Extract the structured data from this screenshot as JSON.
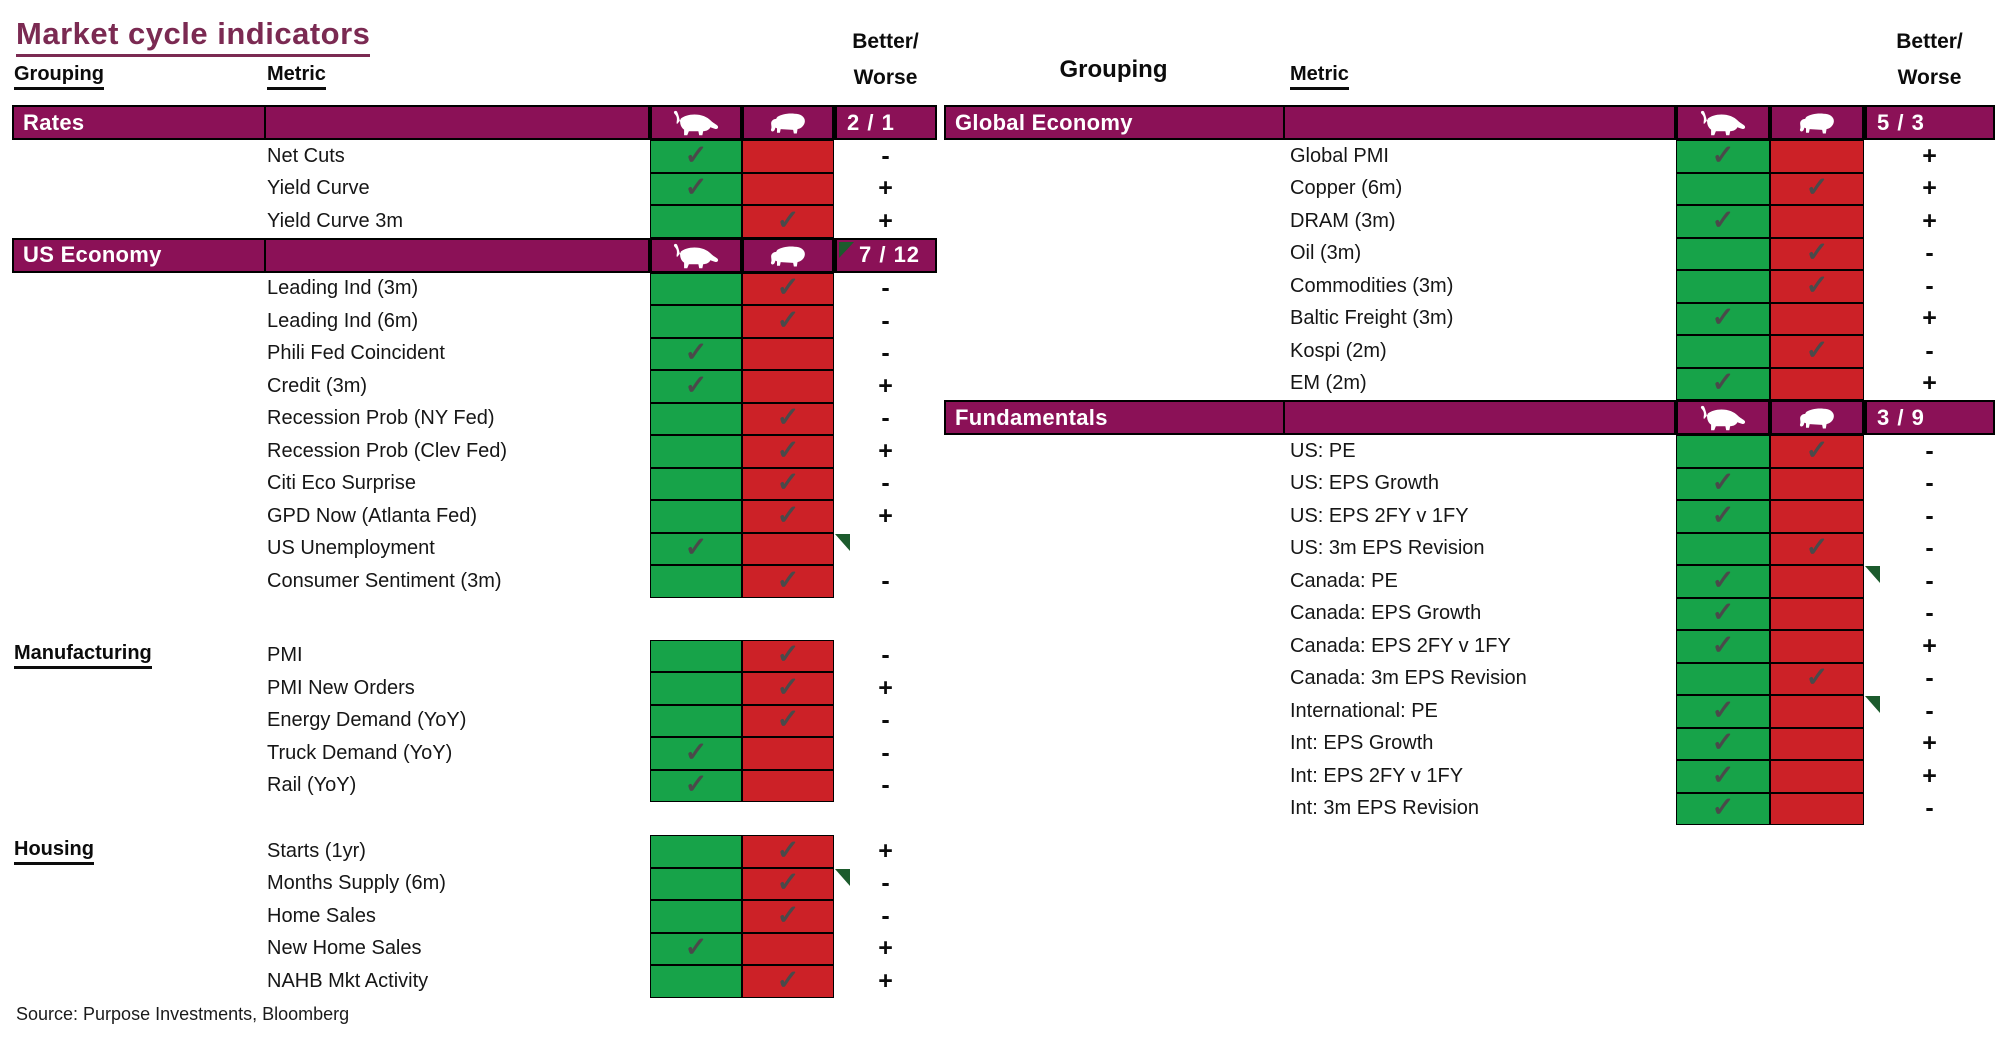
{
  "title": "Market cycle indicators",
  "source_note": "Source: Purpose Investments, Bloomberg",
  "icons": {
    "bull": "bull-silhouette",
    "bear": "bear-silhouette"
  },
  "colors": {
    "band_purple": "#8B1157",
    "title_purple": "#7B2A52",
    "bull_green": "#17A349",
    "bear_red": "#CC2127",
    "check_gray": "#4A4A4A",
    "flag_green": "#1C5B2D"
  },
  "left_table": {
    "headers": {
      "grouping": "Grouping",
      "metric": "Metric",
      "better": "Better/",
      "worse": "Worse"
    },
    "sections": [
      {
        "name": "Rates",
        "type": "band",
        "score": "2 / 1",
        "score_flag": false,
        "rows": [
          {
            "metric": "Net Cuts",
            "signal": "bull",
            "better_worse": "-",
            "flag": false
          },
          {
            "metric": "Yield Curve",
            "signal": "bull",
            "better_worse": "+",
            "flag": false
          },
          {
            "metric": "Yield Curve 3m",
            "signal": "bear",
            "better_worse": "+",
            "flag": false
          }
        ]
      },
      {
        "name": "US Economy",
        "type": "band",
        "score": "7 / 12",
        "score_flag": true,
        "rows": [
          {
            "metric": "Leading Ind (3m)",
            "signal": "bear",
            "better_worse": "-",
            "flag": false
          },
          {
            "metric": "Leading Ind (6m)",
            "signal": "bear",
            "better_worse": "-",
            "flag": false
          },
          {
            "metric": "Phili Fed Coincident",
            "signal": "bull",
            "better_worse": "-",
            "flag": false
          },
          {
            "metric": "Credit (3m)",
            "signal": "bull",
            "better_worse": "+",
            "flag": false
          },
          {
            "metric": "Recession Prob (NY Fed)",
            "signal": "bear",
            "better_worse": "-",
            "flag": false
          },
          {
            "metric": "Recession Prob (Clev Fed)",
            "signal": "bear",
            "better_worse": "+",
            "flag": false
          },
          {
            "metric": "Citi Eco Surprise",
            "signal": "bear",
            "better_worse": "-",
            "flag": false
          },
          {
            "metric": "GPD Now (Atlanta Fed)",
            "signal": "bear",
            "better_worse": "+",
            "flag": false
          },
          {
            "metric": "US Unemployment",
            "signal": "bull",
            "better_worse": "",
            "flag": true
          },
          {
            "metric": "Consumer Sentiment (3m)",
            "signal": "bear",
            "better_worse": "-",
            "flag": false
          }
        ]
      },
      {
        "name": "Manufacturing",
        "type": "label",
        "rows": [
          {
            "metric": "PMI",
            "signal": "bear",
            "better_worse": "-",
            "flag": false
          },
          {
            "metric": "PMI New Orders",
            "signal": "bear",
            "better_worse": "+",
            "flag": false
          },
          {
            "metric": "Energy Demand (YoY)",
            "signal": "bear",
            "better_worse": "-",
            "flag": false
          },
          {
            "metric": "Truck Demand (YoY)",
            "signal": "bull",
            "better_worse": "-",
            "flag": false
          },
          {
            "metric": "Rail (YoY)",
            "signal": "bull",
            "better_worse": "-",
            "flag": false
          }
        ]
      },
      {
        "name": "Housing",
        "type": "label",
        "rows": [
          {
            "metric": "Starts (1yr)",
            "signal": "bear",
            "better_worse": "+",
            "flag": false
          },
          {
            "metric": "Months Supply (6m)",
            "signal": "bear",
            "better_worse": "-",
            "flag": true
          },
          {
            "metric": "Home Sales",
            "signal": "bear",
            "better_worse": "-",
            "flag": false
          },
          {
            "metric": "New Home Sales",
            "signal": "bull",
            "better_worse": "+",
            "flag": false
          },
          {
            "metric": "NAHB Mkt Activity",
            "signal": "bear",
            "better_worse": "+",
            "flag": false
          }
        ]
      }
    ]
  },
  "right_table": {
    "headers": {
      "grouping": "Grouping",
      "metric": "Metric",
      "better": "Better/",
      "worse": "Worse"
    },
    "sections": [
      {
        "name": "Global Economy",
        "type": "band",
        "score": "5 / 3",
        "score_flag": false,
        "rows": [
          {
            "metric": "Global PMI",
            "signal": "bull",
            "better_worse": "+",
            "flag": false
          },
          {
            "metric": "Copper (6m)",
            "signal": "bear",
            "better_worse": "+",
            "flag": false
          },
          {
            "metric": "DRAM (3m)",
            "signal": "bull",
            "better_worse": "+",
            "flag": false
          },
          {
            "metric": "Oil (3m)",
            "signal": "bear",
            "better_worse": "-",
            "flag": false
          },
          {
            "metric": "Commodities (3m)",
            "signal": "bear",
            "better_worse": "-",
            "flag": false
          },
          {
            "metric": "Baltic Freight (3m)",
            "signal": "bull",
            "better_worse": "+",
            "flag": false
          },
          {
            "metric": "Kospi (2m)",
            "signal": "bear",
            "better_worse": "-",
            "flag": false
          },
          {
            "metric": "EM (2m)",
            "signal": "bull",
            "better_worse": "+",
            "flag": false
          }
        ]
      },
      {
        "name": "Fundamentals",
        "type": "band",
        "score": "3 / 9",
        "score_flag": false,
        "rows": [
          {
            "metric": "US: PE",
            "signal": "bear",
            "better_worse": "-",
            "flag": false
          },
          {
            "metric": "US: EPS Growth",
            "signal": "bull",
            "better_worse": "-",
            "flag": false
          },
          {
            "metric": "US: EPS 2FY v 1FY",
            "signal": "bull",
            "better_worse": "-",
            "flag": false
          },
          {
            "metric": "US: 3m EPS Revision",
            "signal": "bear",
            "better_worse": "-",
            "flag": false
          },
          {
            "metric": "Canada: PE",
            "signal": "bull",
            "better_worse": "-",
            "flag": true
          },
          {
            "metric": "Canada: EPS Growth",
            "signal": "bull",
            "better_worse": "-",
            "flag": false
          },
          {
            "metric": "Canada: EPS 2FY v 1FY",
            "signal": "bull",
            "better_worse": "+",
            "flag": false
          },
          {
            "metric": "Canada: 3m EPS Revision",
            "signal": "bear",
            "better_worse": "-",
            "flag": false
          },
          {
            "metric": "International: PE",
            "signal": "bull",
            "better_worse": "-",
            "flag": true
          },
          {
            "metric": "Int: EPS Growth",
            "signal": "bull",
            "better_worse": "+",
            "flag": false
          },
          {
            "metric": "Int: EPS 2FY v 1FY",
            "signal": "bull",
            "better_worse": "+",
            "flag": false
          },
          {
            "metric": "Int: 3m EPS Revision",
            "signal": "bull",
            "better_worse": "-",
            "flag": false
          }
        ]
      }
    ]
  },
  "chart_data": {
    "type": "table",
    "title": "Market cycle indicators",
    "legend": [
      "bull (green cell)",
      "bear (red cell)",
      "Better/Worse (+/-)"
    ],
    "groups": [
      {
        "grouping": "Rates",
        "score": "2 / 1",
        "indicators": [
          [
            "Net Cuts",
            "bull",
            "-"
          ],
          [
            "Yield Curve",
            "bull",
            "+"
          ],
          [
            "Yield Curve 3m",
            "bear",
            "+"
          ]
        ]
      },
      {
        "grouping": "US Economy",
        "score": "7 / 12",
        "indicators": [
          [
            "Leading Ind (3m)",
            "bear",
            "-"
          ],
          [
            "Leading Ind (6m)",
            "bear",
            "-"
          ],
          [
            "Phili Fed Coincident",
            "bull",
            "-"
          ],
          [
            "Credit (3m)",
            "bull",
            "+"
          ],
          [
            "Recession Prob (NY Fed)",
            "bear",
            "-"
          ],
          [
            "Recession Prob (Clev Fed)",
            "bear",
            "+"
          ],
          [
            "Citi Eco Surprise",
            "bear",
            "-"
          ],
          [
            "GPD Now (Atlanta Fed)",
            "bear",
            "+"
          ],
          [
            "US Unemployment",
            "bull",
            ""
          ],
          [
            "Consumer Sentiment (3m)",
            "bear",
            "-"
          ]
        ]
      },
      {
        "grouping": "Manufacturing",
        "score": "",
        "indicators": [
          [
            "PMI",
            "bear",
            "-"
          ],
          [
            "PMI New Orders",
            "bear",
            "+"
          ],
          [
            "Energy Demand (YoY)",
            "bear",
            "-"
          ],
          [
            "Truck Demand (YoY)",
            "bull",
            "-"
          ],
          [
            "Rail (YoY)",
            "bull",
            "-"
          ]
        ]
      },
      {
        "grouping": "Housing",
        "score": "",
        "indicators": [
          [
            "Starts (1yr)",
            "bear",
            "+"
          ],
          [
            "Months Supply (6m)",
            "bear",
            "-"
          ],
          [
            "Home Sales",
            "bear",
            "-"
          ],
          [
            "New Home Sales",
            "bull",
            "+"
          ],
          [
            "NAHB Mkt Activity",
            "bear",
            "+"
          ]
        ]
      },
      {
        "grouping": "Global Economy",
        "score": "5 / 3",
        "indicators": [
          [
            "Global PMI",
            "bull",
            "+"
          ],
          [
            "Copper (6m)",
            "bear",
            "+"
          ],
          [
            "DRAM (3m)",
            "bull",
            "+"
          ],
          [
            "Oil (3m)",
            "bear",
            "-"
          ],
          [
            "Commodities (3m)",
            "bear",
            "-"
          ],
          [
            "Baltic Freight (3m)",
            "bull",
            "+"
          ],
          [
            "Kospi (2m)",
            "bear",
            "-"
          ],
          [
            "EM (2m)",
            "bull",
            "+"
          ]
        ]
      },
      {
        "grouping": "Fundamentals",
        "score": "3 / 9",
        "indicators": [
          [
            "US: PE",
            "bear",
            "-"
          ],
          [
            "US: EPS Growth",
            "bull",
            "-"
          ],
          [
            "US: EPS 2FY v 1FY",
            "bull",
            "-"
          ],
          [
            "US: 3m EPS Revision",
            "bear",
            "-"
          ],
          [
            "Canada: PE",
            "bull",
            "-"
          ],
          [
            "Canada: EPS Growth",
            "bull",
            "-"
          ],
          [
            "Canada: EPS 2FY v 1FY",
            "bull",
            "+"
          ],
          [
            "Canada: 3m EPS Revision",
            "bear",
            "-"
          ],
          [
            "International: PE",
            "bull",
            "-"
          ],
          [
            "Int: EPS Growth",
            "bull",
            "+"
          ],
          [
            "Int: EPS 2FY v 1FY",
            "bull",
            "+"
          ],
          [
            "Int: 3m EPS Revision",
            "bull",
            "-"
          ]
        ]
      }
    ]
  }
}
